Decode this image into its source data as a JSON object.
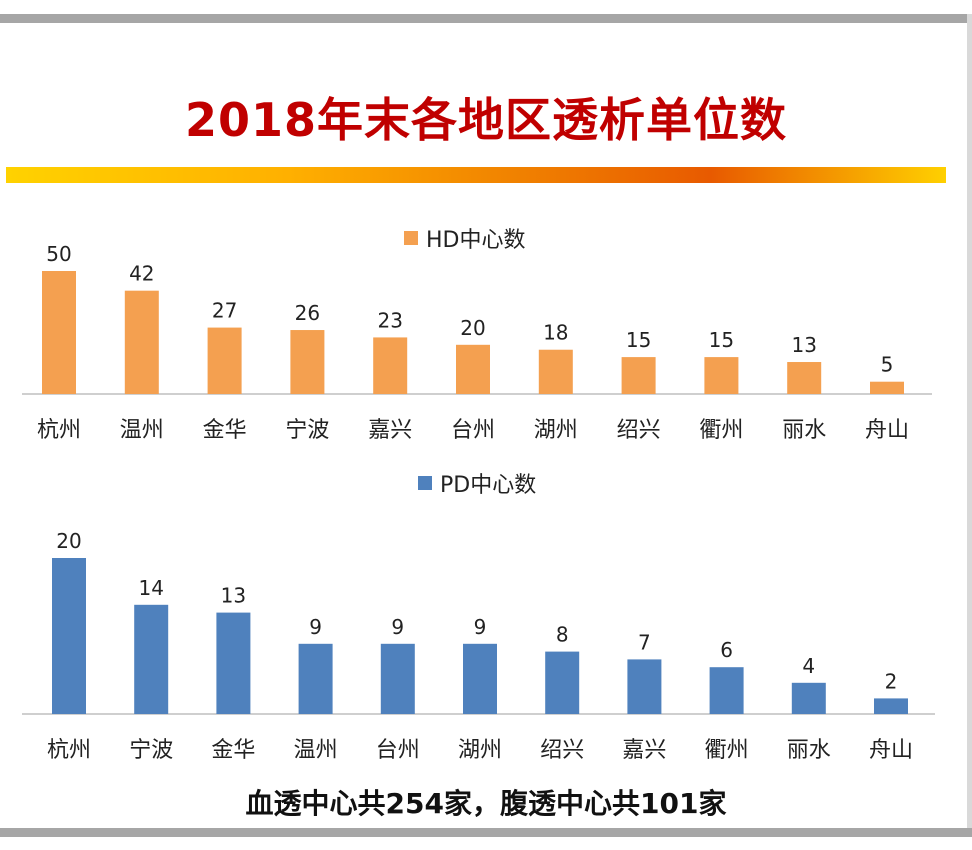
{
  "title": "2018年末各地区透析单位数",
  "footer": "血透中心共254家，腹透中心共101家",
  "colors": {
    "hd": "#f4a050",
    "pd": "#4f81bd",
    "title": "#c00000"
  },
  "chart_data": [
    {
      "type": "bar",
      "legend": "HD中心数",
      "categories": [
        "杭州",
        "温州",
        "金华",
        "宁波",
        "嘉兴",
        "台州",
        "湖州",
        "绍兴",
        "衢州",
        "丽水",
        "舟山"
      ],
      "values": [
        50,
        42,
        27,
        26,
        23,
        20,
        18,
        15,
        15,
        13,
        5
      ],
      "ylim": [
        0,
        55
      ]
    },
    {
      "type": "bar",
      "legend": "PD中心数",
      "categories": [
        "杭州",
        "宁波",
        "金华",
        "温州",
        "台州",
        "湖州",
        "绍兴",
        "嘉兴",
        "衢州",
        "丽水",
        "舟山"
      ],
      "values": [
        20,
        14,
        13,
        9,
        9,
        9,
        8,
        7,
        6,
        4,
        2
      ],
      "ylim": [
        0,
        20.5
      ]
    }
  ]
}
